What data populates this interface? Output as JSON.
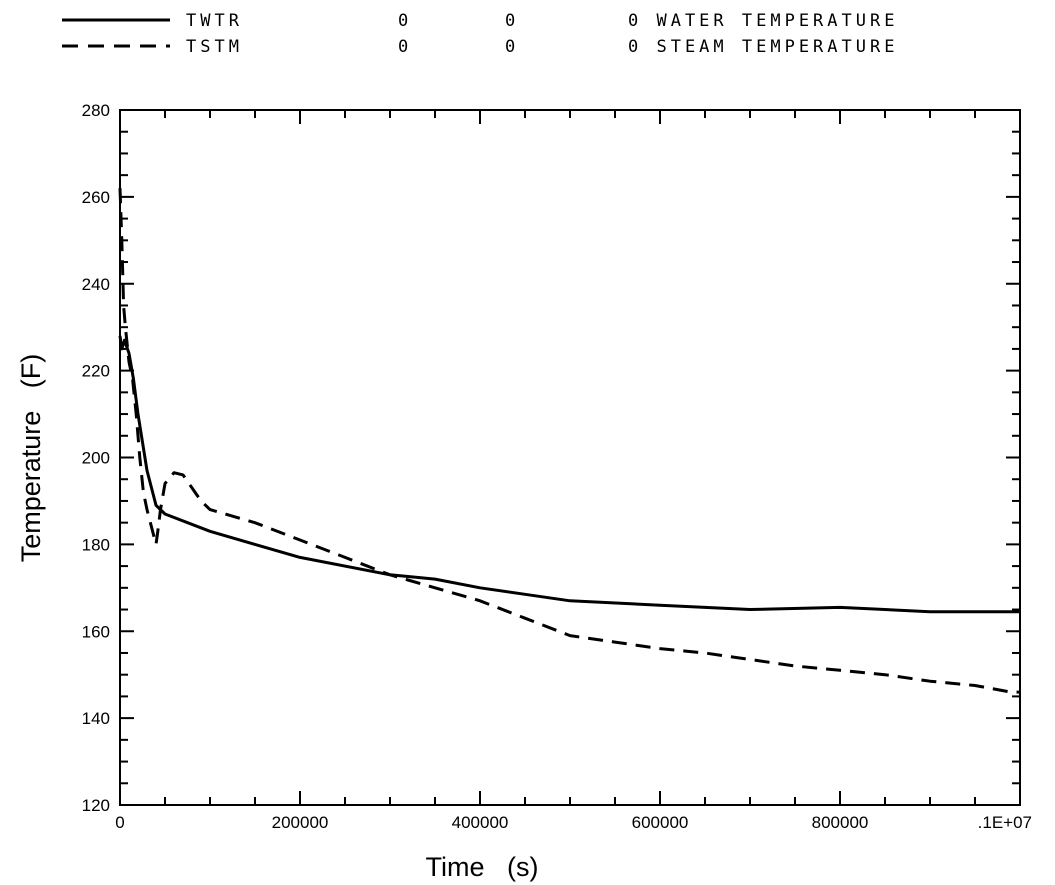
{
  "legend": [
    {
      "name": "TWTR",
      "col2": "0",
      "col3": "0",
      "col4": "0",
      "description": "WATER TEMPERATURE",
      "dash": "solid"
    },
    {
      "name": "TSTM",
      "col2": "0",
      "col3": "0",
      "col4": "0",
      "description": "STEAM TEMPERATURE",
      "dash": "dashed"
    }
  ],
  "chart_data": {
    "type": "line",
    "title": "",
    "xlabel": "Time   (s)",
    "ylabel": "Temperature   (F)",
    "xlim": [
      0,
      1000000
    ],
    "ylim": [
      120,
      280
    ],
    "xticks": [
      0,
      200000,
      400000,
      600000,
      800000,
      1000000
    ],
    "xtick_labels": [
      "0",
      "200000",
      "400000",
      "600000",
      "800000",
      ".1E+07"
    ],
    "yticks": [
      120,
      140,
      160,
      180,
      200,
      220,
      240,
      260,
      280
    ],
    "ytick_labels": [
      "120",
      "140",
      "160",
      "180",
      "200",
      "220",
      "240",
      "260",
      "280"
    ],
    "grid": false,
    "legend_position": "top",
    "series": [
      {
        "name": "TWTR",
        "style": "solid",
        "x": [
          0,
          2000,
          5000,
          10000,
          15000,
          20000,
          30000,
          40000,
          50000,
          100000,
          150000,
          200000,
          300000,
          350000,
          400000,
          450000,
          500000,
          600000,
          700000,
          800000,
          900000,
          1000000
        ],
        "y": [
          228,
          225,
          227,
          224,
          218,
          210,
          197,
          189,
          187,
          183,
          180,
          177,
          173,
          172,
          170,
          168.5,
          167,
          166,
          165,
          165.5,
          164.5,
          164.5
        ]
      },
      {
        "name": "TSTM",
        "style": "dashed",
        "x": [
          0,
          2000,
          4000,
          6000,
          8000,
          10000,
          14000,
          18000,
          22000,
          26000,
          30000,
          35000,
          40000,
          42000,
          45000,
          50000,
          60000,
          70000,
          80000,
          90000,
          100000,
          150000,
          200000,
          250000,
          300000,
          350000,
          400000,
          450000,
          500000,
          550000,
          600000,
          650000,
          700000,
          750000,
          800000,
          850000,
          900000,
          950000,
          990000,
          1000000
        ],
        "y": [
          262,
          250,
          235,
          230,
          226,
          222,
          218,
          210,
          200,
          192,
          188,
          184,
          180,
          183,
          188,
          194,
          196.5,
          196,
          193,
          190,
          188,
          185,
          181,
          177,
          173,
          170,
          167,
          163,
          159,
          157.5,
          156,
          155,
          153.5,
          152,
          151,
          150,
          148.5,
          147.5,
          146,
          146
        ]
      }
    ]
  }
}
